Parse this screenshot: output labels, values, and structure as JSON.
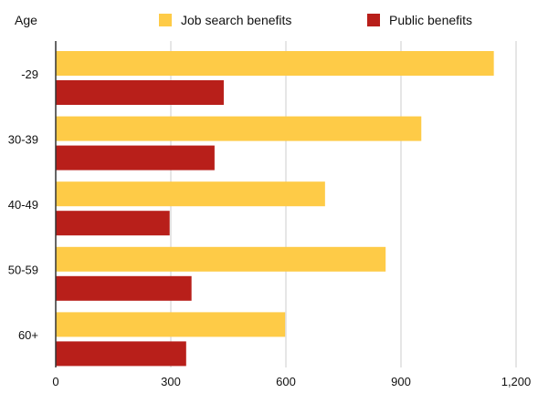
{
  "chart_data": {
    "type": "bar",
    "orientation": "horizontal",
    "y_axis_title": "Age",
    "categories": [
      "-29",
      "30-39",
      "40-49",
      "50-59",
      "60+"
    ],
    "series": [
      {
        "name": "Job search benefits",
        "color": "#FECB47",
        "values": [
          1142,
          953,
          702,
          860,
          598
        ]
      },
      {
        "name": "Public benefits",
        "color": "#B81F1A",
        "values": [
          438,
          414,
          297,
          354,
          340
        ]
      }
    ],
    "x_ticks": [
      "0",
      "300",
      "600",
      "900",
      "1,200"
    ],
    "xlim": [
      0,
      1200
    ],
    "grid": true,
    "legend_position": "top"
  }
}
